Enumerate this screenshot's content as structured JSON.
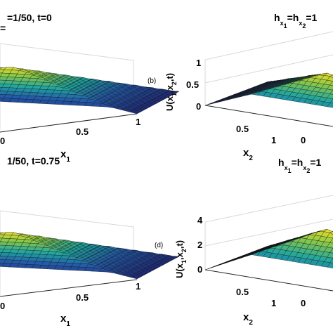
{
  "figure": {
    "panels": [
      {
        "id": "a",
        "title": {
          "prefix": "",
          "suffix": "=1/50, t=0",
          "subs": []
        },
        "extra_title": "=",
        "panel_label": "",
        "xaxis": {
          "main": "x",
          "sub": "1",
          "ticks": [
            "0",
            "0.5",
            "1"
          ]
        },
        "zaxis": {
          "main": "",
          "ticks": []
        }
      },
      {
        "id": "b",
        "title": {
          "prefix": "h",
          "suffix": "=1",
          "subs": [
            "x",
            "1",
            "x",
            "2"
          ],
          "mid": "=h"
        },
        "extra_title": "",
        "panel_label": "(b)",
        "xaxis": {
          "main": "x",
          "sub": "2",
          "ticks": [
            "0",
            "0.5",
            "1",
            "0"
          ]
        },
        "zaxis": {
          "main": "U(x",
          "parts": [
            "1",
            ",x",
            "2",
            ",t)"
          ],
          "ticks": [
            "0",
            "0.5",
            "1"
          ]
        }
      },
      {
        "id": "c",
        "title": {
          "prefix": "",
          "suffix": "1/50, t=0.75",
          "subs": []
        },
        "extra_title": "",
        "panel_label": "",
        "xaxis": {
          "main": "x",
          "sub": "1",
          "ticks": [
            "0",
            "0.5",
            "1"
          ]
        },
        "zaxis": {
          "main": "",
          "ticks": []
        }
      },
      {
        "id": "d",
        "title": {
          "prefix": "h",
          "suffix": "=1",
          "subs": [
            "x",
            "1",
            "x",
            "2"
          ],
          "mid": "=h"
        },
        "extra_title": "",
        "panel_label": "(d)",
        "xaxis": {
          "main": "x",
          "sub": "2",
          "ticks": [
            "0",
            "0.5",
            "1",
            "0"
          ]
        },
        "zaxis": {
          "main": "U(x",
          "parts": [
            "1",
            ",x",
            "2",
            ",t)"
          ],
          "ticks": [
            "0",
            "2",
            "4"
          ]
        }
      }
    ]
  },
  "chart_data": [
    {
      "type": "surface",
      "panel": "a",
      "title": "=1/50, t=0",
      "xlabel": "x1",
      "xticks": [
        0,
        0.5,
        1
      ],
      "zlim": [
        0,
        1
      ],
      "peak": 1,
      "colormap": "parula"
    },
    {
      "type": "surface",
      "panel": "b",
      "title": "hx1=hx2=1",
      "xlabel": "x2",
      "zlabel": "U(x1,x2,t)",
      "xticks": [
        0,
        0.5,
        1
      ],
      "zticks": [
        0,
        0.5,
        1
      ],
      "zlim": [
        0,
        1
      ],
      "peak": 1,
      "colormap": "parula"
    },
    {
      "type": "surface",
      "panel": "c",
      "title": "1/50, t=0.75",
      "xlabel": "x1",
      "xticks": [
        0,
        0.5,
        1
      ],
      "zlim": [
        0,
        4
      ],
      "peak": 4,
      "colormap": "parula"
    },
    {
      "type": "surface",
      "panel": "d",
      "title": "hx1=hx2=1",
      "xlabel": "x2",
      "zlabel": "U(x1,x2,t)",
      "xticks": [
        0,
        0.5,
        1
      ],
      "zticks": [
        0,
        2,
        4
      ],
      "zlim": [
        0,
        4
      ],
      "peak": 4,
      "colormap": "parula"
    }
  ],
  "colors": {
    "low": "#1f2a7a",
    "mid": "#1fa7a0",
    "high": "#f5e12a",
    "mesh": "#111111"
  }
}
